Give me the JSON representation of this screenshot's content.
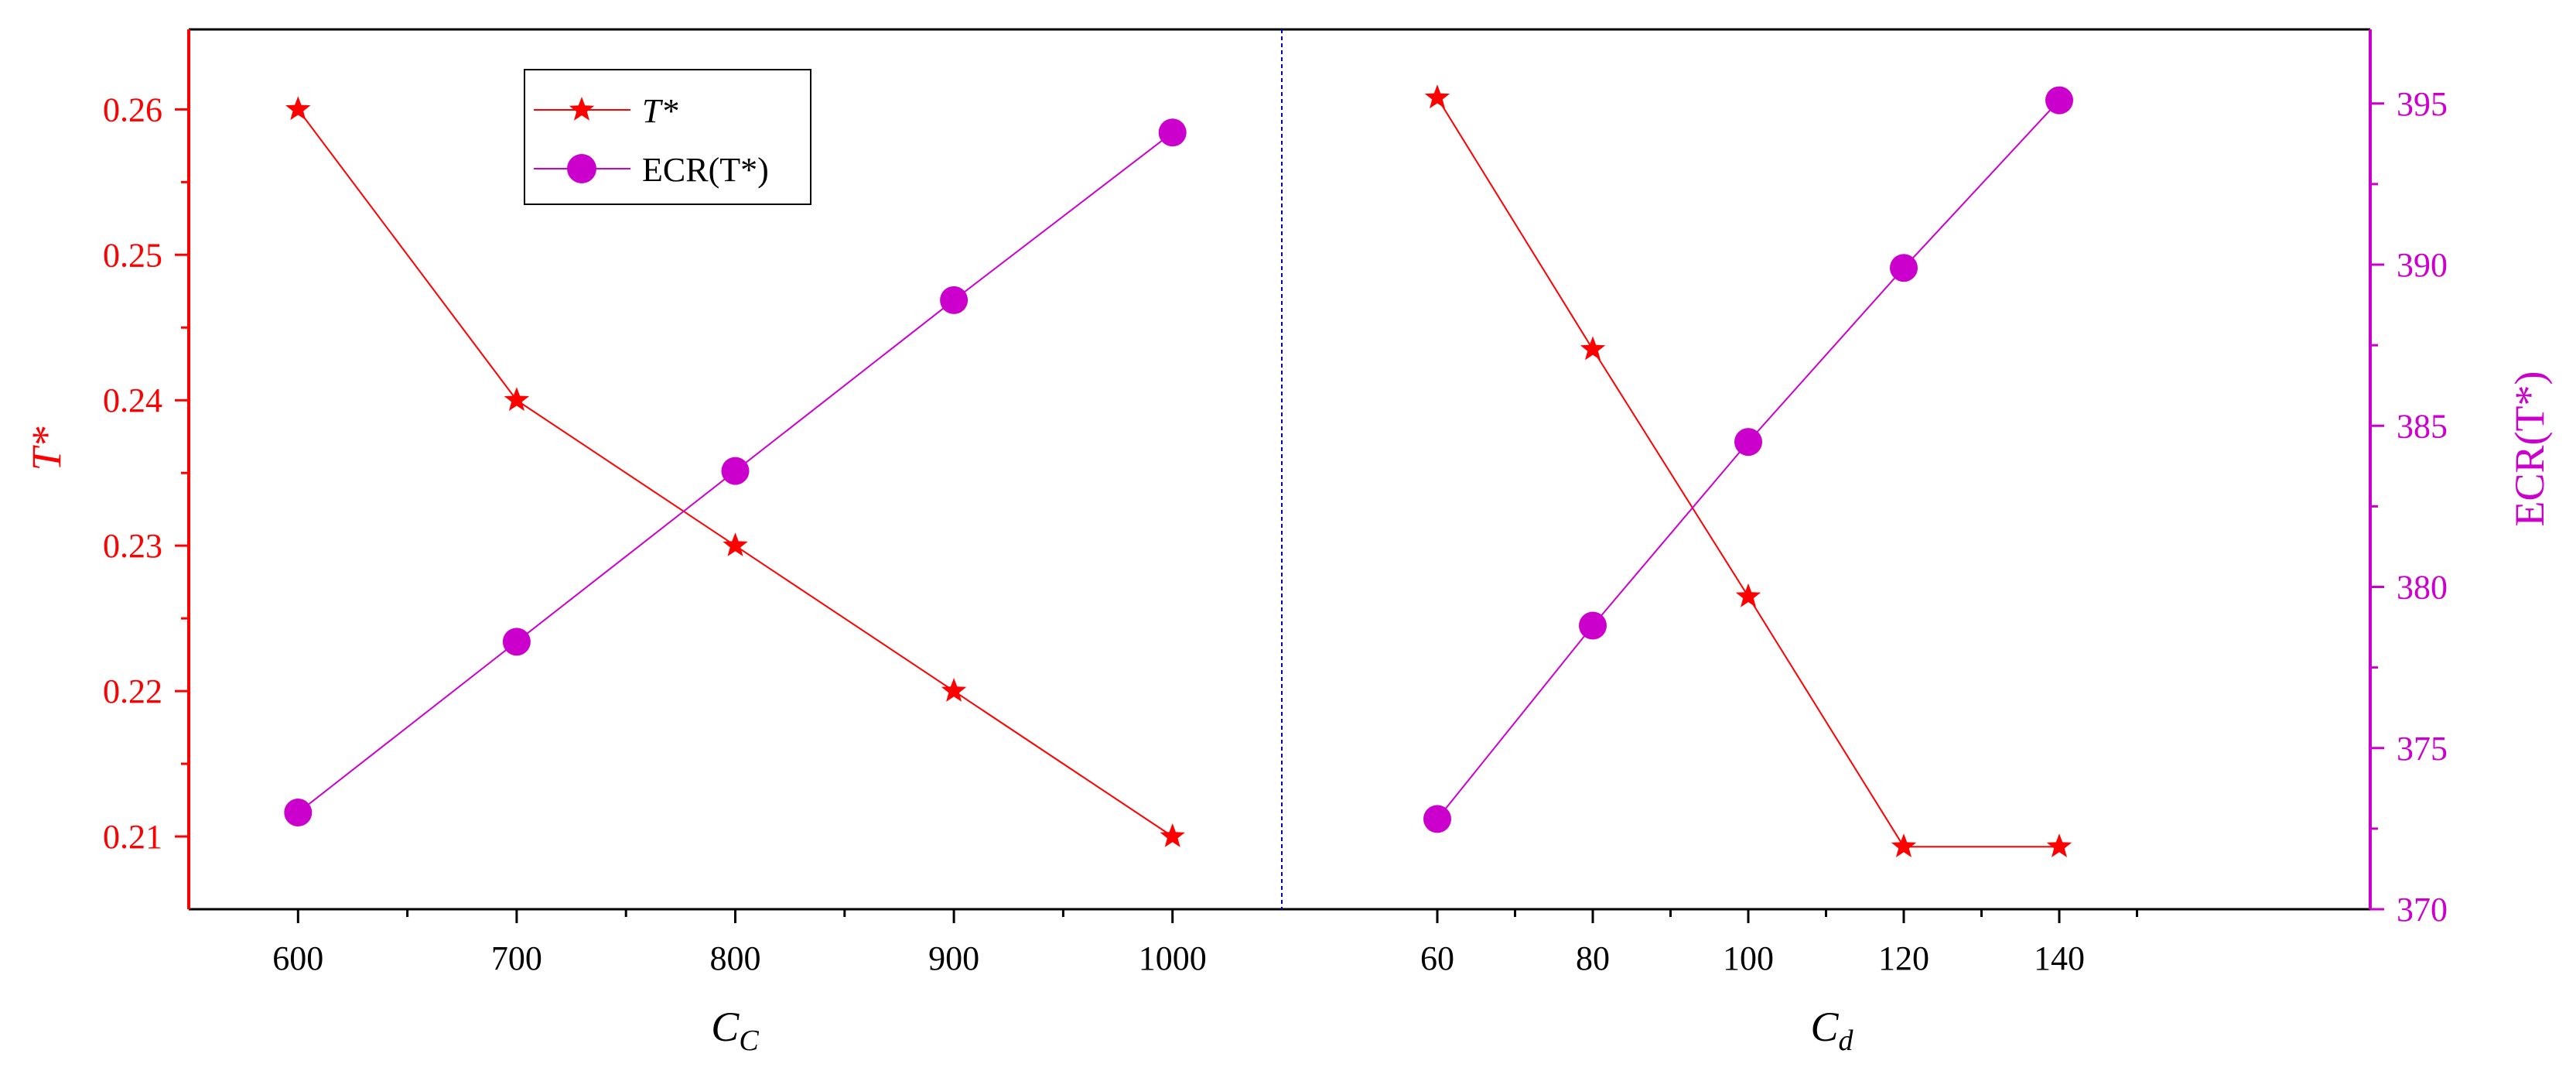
{
  "chart_data": {
    "type": "line",
    "colors": {
      "t_star": "#ff0000",
      "ecr": "#cc00cc",
      "divider": "#0000cc",
      "frame": "#000000"
    },
    "y_left": {
      "label": "T*",
      "range": [
        0.205,
        0.2655
      ],
      "ticks": [
        "0.21",
        "0.22",
        "0.23",
        "0.24",
        "0.25",
        "0.26"
      ],
      "tick_values": [
        0.21,
        0.22,
        0.23,
        0.24,
        0.25,
        0.26
      ]
    },
    "y_right": {
      "label": "ECR(T*)",
      "range": [
        370,
        397.3
      ],
      "ticks": [
        "370",
        "375",
        "380",
        "385",
        "390",
        "395"
      ],
      "tick_values": [
        370,
        375,
        380,
        385,
        390,
        395
      ]
    },
    "legend": {
      "position": "top-left",
      "entries": [
        {
          "label": "T*",
          "series": "t_star",
          "marker": "star"
        },
        {
          "label": "ECR(T*)",
          "series": "ecr",
          "marker": "circle"
        }
      ]
    },
    "panels": [
      {
        "xlabel": "C_C",
        "xlabel_main": "C",
        "xlabel_sub": "C",
        "x_range": [
          550,
          1050
        ],
        "x_ticks": [
          "600",
          "700",
          "800",
          "900",
          "1000"
        ],
        "x_tick_values": [
          600,
          700,
          800,
          900,
          1000
        ],
        "x_minor": [
          650,
          750,
          850,
          950
        ],
        "x": [
          600,
          700,
          800,
          900,
          1000
        ],
        "series": [
          {
            "name": "T*",
            "axis": "left",
            "marker": "star",
            "values": [
              0.26,
              0.24,
              0.23,
              0.22,
              0.21
            ]
          },
          {
            "name": "ECR(T*)",
            "axis": "right",
            "marker": "circle",
            "values": [
              373.0,
              378.3,
              383.6,
              388.9,
              394.1
            ]
          }
        ]
      },
      {
        "xlabel": "C_d",
        "xlabel_main": "C",
        "xlabel_sub": "d",
        "x_range": [
          40,
          180
        ],
        "x_ticks": [
          "60",
          "80",
          "100",
          "120",
          "140"
        ],
        "x_tick_values": [
          60,
          80,
          100,
          120,
          140
        ],
        "x_minor": [
          70,
          90,
          110,
          130,
          150
        ],
        "x": [
          60,
          80,
          100,
          120,
          140
        ],
        "series": [
          {
            "name": "T*",
            "axis": "left",
            "marker": "star",
            "values": [
              0.2608,
              0.2435,
              0.2265,
              0.2093,
              0.2093
            ]
          },
          {
            "name": "ECR(T*)",
            "axis": "right",
            "marker": "circle",
            "values": [
              372.8,
              378.8,
              384.5,
              389.9,
              395.1
            ]
          }
        ]
      }
    ]
  }
}
